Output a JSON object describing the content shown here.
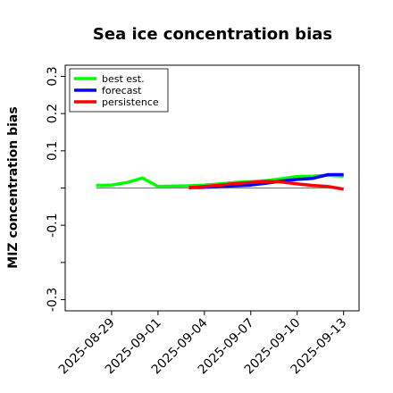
{
  "chart_data": {
    "type": "line",
    "title": "Sea ice concentration bias",
    "xlabel": "",
    "ylabel": "MIZ concentration bias",
    "x_ticks": [
      "2025-08-29",
      "2025-09-01",
      "2025-09-04",
      "2025-09-07",
      "2025-09-10",
      "2025-09-13"
    ],
    "highlighted_tick": "2025-09-04",
    "highlight_color": "#228b22",
    "y_ticks": [
      -0.3,
      -0.2,
      -0.1,
      0.0,
      0.1,
      0.2,
      0.3
    ],
    "y_tick_labels": [
      "-0.3",
      "",
      "-0.1",
      "",
      "0.1",
      "0.2",
      "0.3"
    ],
    "xlim": [
      "2025-08-26",
      "2025-09-14"
    ],
    "ylim": [
      -0.33,
      0.33
    ],
    "reference_line": {
      "y": 0.0,
      "color": "#808080"
    },
    "grid": false,
    "legend_position": "top-left",
    "series": [
      {
        "name": "best est.",
        "color": "#00ff00",
        "x": [
          "2025-08-28",
          "2025-08-29",
          "2025-08-30",
          "2025-08-31",
          "2025-09-01",
          "2025-09-02",
          "2025-09-03",
          "2025-09-04",
          "2025-09-05",
          "2025-09-06",
          "2025-09-07",
          "2025-09-08",
          "2025-09-09",
          "2025-09-10",
          "2025-09-11",
          "2025-09-12",
          "2025-09-13"
        ],
        "y": [
          0.007,
          0.008,
          0.015,
          0.027,
          0.004,
          0.005,
          0.006,
          0.008,
          0.011,
          0.015,
          0.017,
          0.02,
          0.025,
          0.031,
          0.032,
          0.034,
          0.032
        ]
      },
      {
        "name": "forecast",
        "color": "#0000ff",
        "x": [
          "2025-09-03",
          "2025-09-04",
          "2025-09-05",
          "2025-09-06",
          "2025-09-07",
          "2025-09-08",
          "2025-09-09",
          "2025-09-10",
          "2025-09-11",
          "2025-09-12",
          "2025-09-13"
        ],
        "y": [
          0.001,
          0.002,
          0.004,
          0.006,
          0.008,
          0.013,
          0.019,
          0.023,
          0.026,
          0.036,
          0.036
        ]
      },
      {
        "name": "persistence",
        "color": "#ff0000",
        "x": [
          "2025-09-03",
          "2025-09-04",
          "2025-09-05",
          "2025-09-06",
          "2025-09-07",
          "2025-09-08",
          "2025-09-09",
          "2025-09-10",
          "2025-09-11",
          "2025-09-12",
          "2025-09-13"
        ],
        "y": [
          0.001,
          0.004,
          0.008,
          0.012,
          0.015,
          0.018,
          0.016,
          0.011,
          0.007,
          0.004,
          -0.003
        ]
      }
    ]
  }
}
